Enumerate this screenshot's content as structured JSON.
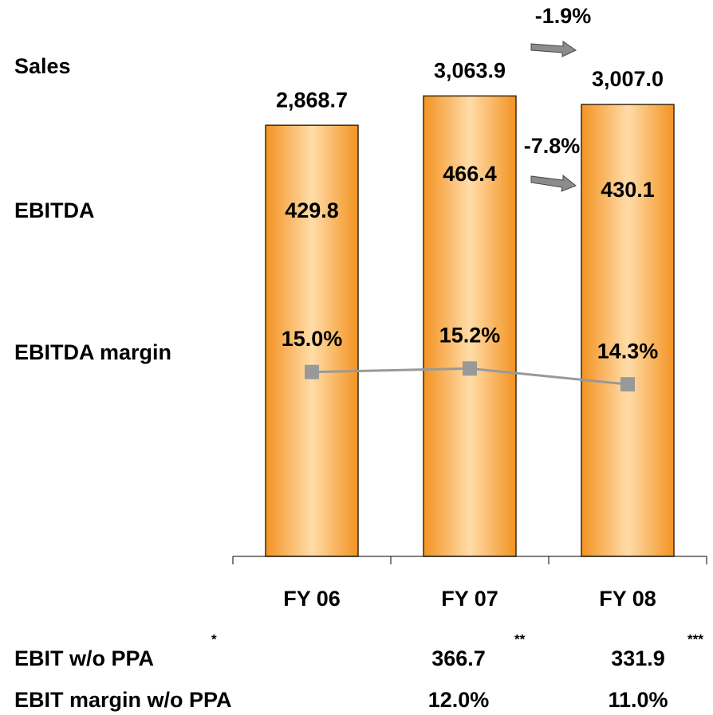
{
  "chart_data": {
    "type": "bar",
    "categories": [
      "FY 06",
      "FY 07",
      "FY 08"
    ],
    "series": [
      {
        "name": "Sales",
        "color": "#f5a033",
        "values": [
          2868.7,
          3063.9,
          3007.0
        ],
        "value_labels": [
          "2,868.7",
          "3,063.9",
          "3,007.0"
        ]
      },
      {
        "name": "EBITDA",
        "values": [
          429.8,
          466.4,
          430.1
        ]
      },
      {
        "name": "EBITDA margin",
        "type": "line",
        "axis": "y2",
        "color": "#999999",
        "values": [
          15.0,
          15.2,
          14.3
        ],
        "value_labels": [
          "15.0%",
          "15.2%",
          "14.3%"
        ]
      }
    ],
    "ylim": [
      0,
      3400
    ],
    "y2lim": [
      4.5,
      33.6
    ],
    "annotations": [
      "-1.9%",
      "-7.8%"
    ],
    "table": {
      "rows": [
        {
          "label": "EBIT w/o PPA",
          "note": "*",
          "values": [
            "366.7",
            "331.9"
          ],
          "notes": [
            "**",
            "***"
          ]
        },
        {
          "label": "EBIT margin w/o PPA",
          "values": [
            "12.0%",
            "11.0%"
          ]
        }
      ]
    }
  }
}
